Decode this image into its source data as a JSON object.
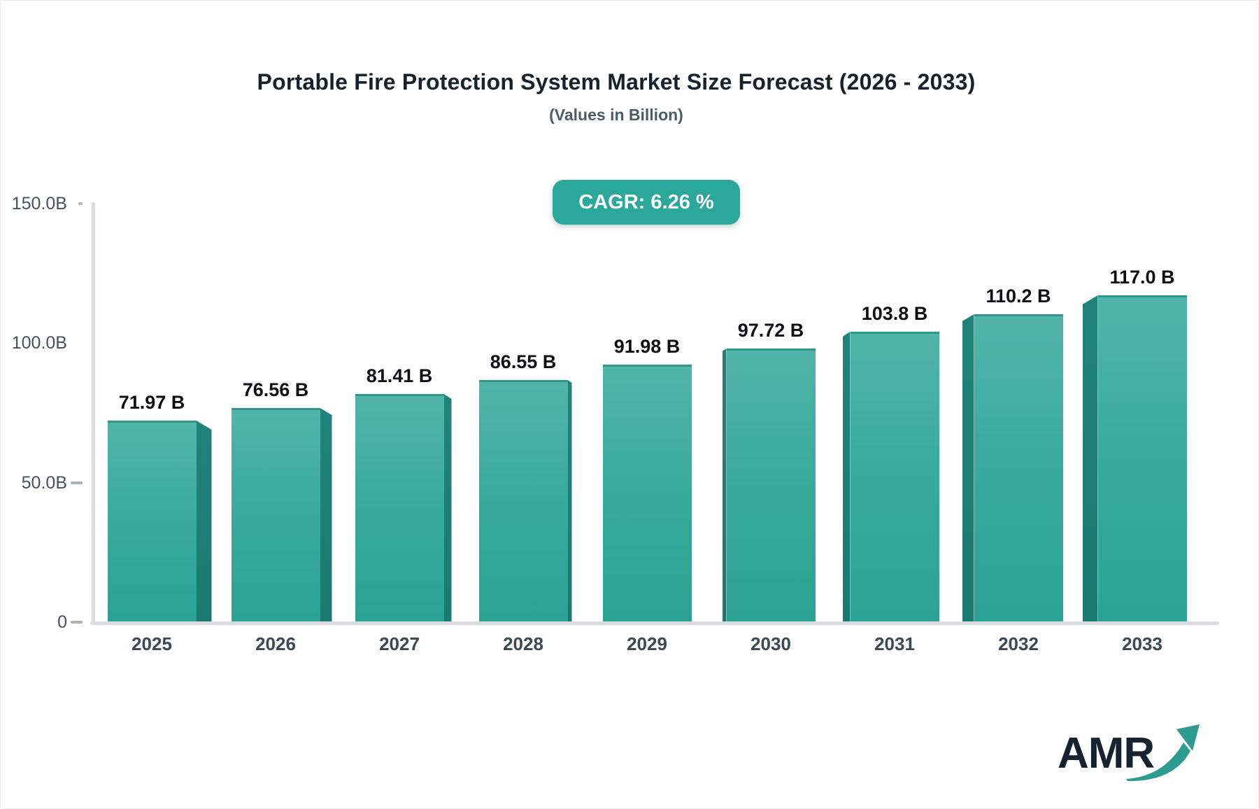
{
  "chart_data": {
    "type": "bar",
    "title": "Portable Fire Protection System Market Size Forecast (2026 - 2033)",
    "subtitle": "(Values in Billion)",
    "badge_label": "CAGR: 6.26 %",
    "categories": [
      "2025",
      "2026",
      "2027",
      "2028",
      "2029",
      "2030",
      "2031",
      "2032",
      "2033"
    ],
    "values": [
      71.97,
      76.56,
      81.41,
      86.55,
      91.98,
      97.72,
      103.8,
      110.2,
      117.0
    ],
    "value_labels": [
      "71.97 B",
      "76.56 B",
      "81.41 B",
      "86.55 B",
      "91.98 B",
      "97.72 B",
      "103.8 B",
      "110.2 B",
      "117.0 B"
    ],
    "xlabel": "",
    "ylabel": "",
    "ylim": [
      0,
      150
    ],
    "yticks": [
      {
        "label": "150.0B",
        "value": 150,
        "dash": "dot"
      },
      {
        "label": "100.0B",
        "value": 100,
        "dash": "none"
      },
      {
        "label": "50.0B",
        "value": 50,
        "dash": "line"
      },
      {
        "label": "0",
        "value": 0,
        "dash": "line"
      }
    ],
    "grid": "off",
    "legend": "none",
    "bar_style": "3d-extruded, perspective vanishing at center bar",
    "colors": {
      "bar_top": "#52b4a9",
      "bar_bottom": "#2aa294",
      "bar_side": "#1d7d73",
      "bar_top_edge": "#2c978c",
      "axis_line": "#d9dde2",
      "tick_text": "#46525f",
      "year_text": "#3b4856",
      "value_text": "#0d1013",
      "title_text": "#17212c",
      "subtitle_text": "#4d5a6a",
      "badge_bg": "#2aa89b",
      "badge_text": "#ffffff",
      "logo_text": "#16232e",
      "logo_arrow": "#2e9b90"
    }
  },
  "logo": {
    "text": "AMR"
  }
}
